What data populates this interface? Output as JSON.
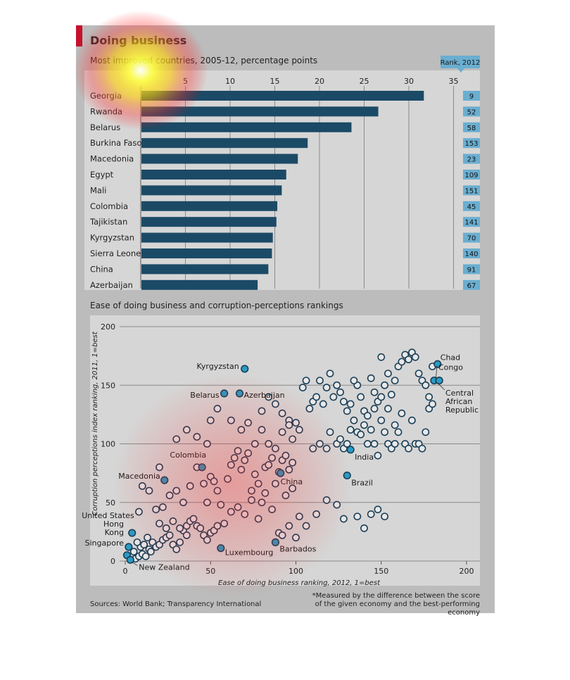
{
  "header": {
    "title": "Doing business",
    "subtitle": "Most improved countries, 2005-12, percentage points",
    "rank_header": "Rank, 2012"
  },
  "scatter_title": "Ease of doing business and corruption-perceptions rankings",
  "footer": {
    "sources": "Sources: World Bank; Transparency International",
    "footnote": "*Measured by the difference between the score of the given economy and the best-performing economy"
  },
  "colors": {
    "bar": "#1b4a66",
    "rank_box": "#6aaed0",
    "point_highlight": "#2a9bc4",
    "point_outline": "#1a3f57",
    "accent": "#c8102e"
  },
  "chart_data": [
    {
      "type": "bar",
      "orientation": "horizontal",
      "title": "Most improved countries, 2005-12, percentage points",
      "categories": [
        "Georgia",
        "Rwanda",
        "Belarus",
        "Burkina Faso",
        "Macedonia",
        "Egypt",
        "Mali",
        "Colombia",
        "Tajikistan",
        "Kyrgyzstan",
        "Sierra Leone",
        "China",
        "Azerbaijan"
      ],
      "values": [
        31.6,
        26.5,
        23.5,
        18.6,
        17.5,
        16.2,
        15.7,
        15.2,
        15.1,
        14.7,
        14.6,
        14.2,
        13.0
      ],
      "ranks": [
        9,
        52,
        58,
        153,
        23,
        109,
        151,
        45,
        141,
        70,
        140,
        91,
        67
      ],
      "rank_label": "Rank, 2012",
      "xlim": [
        0,
        35
      ],
      "xticks": [
        5,
        10,
        15,
        20,
        25,
        30,
        35
      ],
      "grid": true
    },
    {
      "type": "scatter",
      "title": "Ease of doing business and corruption-perceptions rankings",
      "xlabel": "Ease of doing business ranking, 2012, 1=best",
      "ylabel": "Corruption perceptions index ranking, 2011, 1=best",
      "xlim": [
        0,
        200
      ],
      "ylim": [
        0,
        200
      ],
      "xticks": [
        0,
        50,
        100,
        150,
        200
      ],
      "yticks": [
        0,
        50,
        100,
        150,
        200
      ],
      "grid": true,
      "highlighted": [
        {
          "label": "Kyrgyzstan",
          "x": 70,
          "y": 164
        },
        {
          "label": "Belarus",
          "x": 58,
          "y": 143
        },
        {
          "label": "Azerbaijan",
          "x": 67,
          "y": 143
        },
        {
          "label": "Chad",
          "x": 183,
          "y": 168
        },
        {
          "label": "Congo",
          "x": 181,
          "y": 154
        },
        {
          "label": "Central African Republic",
          "x": 184,
          "y": 154
        },
        {
          "label": "Colombia",
          "x": 45,
          "y": 80
        },
        {
          "label": "Macedonia",
          "x": 23,
          "y": 69
        },
        {
          "label": "China",
          "x": 91,
          "y": 75
        },
        {
          "label": "India",
          "x": 132,
          "y": 95
        },
        {
          "label": "Brazil",
          "x": 130,
          "y": 73
        },
        {
          "label": "United States",
          "x": 4,
          "y": 24
        },
        {
          "label": "Hong Kong",
          "x": 2,
          "y": 12
        },
        {
          "label": "Singapore",
          "x": 1,
          "y": 5
        },
        {
          "label": "New Zealand",
          "x": 3,
          "y": 1
        },
        {
          "label": "Luxembourg",
          "x": 56,
          "y": 11
        },
        {
          "label": "Barbados",
          "x": 88,
          "y": 16
        }
      ],
      "points": [
        [
          6,
          2
        ],
        [
          8,
          4
        ],
        [
          10,
          6
        ],
        [
          12,
          4
        ],
        [
          5,
          8
        ],
        [
          14,
          10
        ],
        [
          9,
          12
        ],
        [
          11,
          14
        ],
        [
          16,
          16
        ],
        [
          18,
          12
        ],
        [
          20,
          14
        ],
        [
          22,
          18
        ],
        [
          24,
          20
        ],
        [
          7,
          16
        ],
        [
          13,
          20
        ],
        [
          15,
          8
        ],
        [
          26,
          22
        ],
        [
          28,
          14
        ],
        [
          30,
          10
        ],
        [
          32,
          16
        ],
        [
          34,
          26
        ],
        [
          36,
          30
        ],
        [
          38,
          34
        ],
        [
          40,
          36
        ],
        [
          42,
          30
        ],
        [
          44,
          28
        ],
        [
          46,
          22
        ],
        [
          48,
          18
        ],
        [
          50,
          24
        ],
        [
          52,
          26
        ],
        [
          54,
          30
        ],
        [
          20,
          32
        ],
        [
          24,
          28
        ],
        [
          28,
          34
        ],
        [
          32,
          28
        ],
        [
          36,
          22
        ],
        [
          18,
          44
        ],
        [
          22,
          46
        ],
        [
          26,
          56
        ],
        [
          30,
          60
        ],
        [
          34,
          50
        ],
        [
          14,
          60
        ],
        [
          10,
          64
        ],
        [
          8,
          42
        ],
        [
          20,
          80
        ],
        [
          38,
          64
        ],
        [
          42,
          80
        ],
        [
          46,
          66
        ],
        [
          48,
          50
        ],
        [
          50,
          72
        ],
        [
          52,
          68
        ],
        [
          54,
          60
        ],
        [
          56,
          48
        ],
        [
          60,
          70
        ],
        [
          62,
          82
        ],
        [
          64,
          88
        ],
        [
          66,
          94
        ],
        [
          68,
          78
        ],
        [
          70,
          86
        ],
        [
          72,
          92
        ],
        [
          74,
          60
        ],
        [
          76,
          74
        ],
        [
          78,
          66
        ],
        [
          80,
          50
        ],
        [
          82,
          80
        ],
        [
          84,
          82
        ],
        [
          86,
          88
        ],
        [
          88,
          66
        ],
        [
          90,
          76
        ],
        [
          92,
          86
        ],
        [
          94,
          90
        ],
        [
          96,
          78
        ],
        [
          98,
          84
        ],
        [
          58,
          32
        ],
        [
          62,
          42
        ],
        [
          66,
          46
        ],
        [
          70,
          40
        ],
        [
          74,
          52
        ],
        [
          78,
          36
        ],
        [
          82,
          58
        ],
        [
          86,
          44
        ],
        [
          90,
          24
        ],
        [
          94,
          56
        ],
        [
          98,
          62
        ],
        [
          48,
          100
        ],
        [
          50,
          120
        ],
        [
          54,
          130
        ],
        [
          68,
          112
        ],
        [
          76,
          100
        ],
        [
          80,
          112
        ],
        [
          84,
          100
        ],
        [
          88,
          96
        ],
        [
          92,
          110
        ],
        [
          96,
          120
        ],
        [
          98,
          104
        ],
        [
          102,
          112
        ],
        [
          110,
          96
        ],
        [
          114,
          100
        ],
        [
          118,
          96
        ],
        [
          120,
          110
        ],
        [
          124,
          100
        ],
        [
          126,
          104
        ],
        [
          128,
          96
        ],
        [
          130,
          100
        ],
        [
          132,
          112
        ],
        [
          134,
          120
        ],
        [
          136,
          110
        ],
        [
          138,
          108
        ],
        [
          140,
          116
        ],
        [
          142,
          100
        ],
        [
          144,
          112
        ],
        [
          146,
          100
        ],
        [
          148,
          90
        ],
        [
          150,
          120
        ],
        [
          152,
          110
        ],
        [
          154,
          100
        ],
        [
          156,
          96
        ],
        [
          158,
          100
        ],
        [
          160,
          110
        ],
        [
          164,
          100
        ],
        [
          166,
          96
        ],
        [
          170,
          100
        ],
        [
          172,
          100
        ],
        [
          174,
          96
        ],
        [
          176,
          110
        ],
        [
          178,
          130
        ],
        [
          180,
          134
        ],
        [
          168,
          120
        ],
        [
          162,
          126
        ],
        [
          100,
          118
        ],
        [
          104,
          148
        ],
        [
          106,
          154
        ],
        [
          108,
          130
        ],
        [
          110,
          136
        ],
        [
          112,
          140
        ],
        [
          114,
          154
        ],
        [
          116,
          134
        ],
        [
          118,
          148
        ],
        [
          120,
          160
        ],
        [
          122,
          140
        ],
        [
          124,
          150
        ],
        [
          126,
          144
        ],
        [
          128,
          136
        ],
        [
          130,
          128
        ],
        [
          132,
          134
        ],
        [
          136,
          150
        ],
        [
          140,
          128
        ],
        [
          142,
          124
        ],
        [
          144,
          156
        ],
        [
          146,
          144
        ],
        [
          148,
          136
        ],
        [
          150,
          174
        ],
        [
          152,
          150
        ],
        [
          154,
          160
        ],
        [
          156,
          142
        ],
        [
          158,
          154
        ],
        [
          160,
          166
        ],
        [
          162,
          170
        ],
        [
          164,
          176
        ],
        [
          166,
          172
        ],
        [
          168,
          178
        ],
        [
          170,
          174
        ],
        [
          172,
          160
        ],
        [
          174,
          154
        ],
        [
          176,
          150
        ],
        [
          178,
          140
        ],
        [
          180,
          166
        ],
        [
          150,
          140
        ],
        [
          154,
          130
        ],
        [
          158,
          116
        ],
        [
          146,
          130
        ],
        [
          138,
          140
        ],
        [
          134,
          154
        ],
        [
          62,
          120
        ],
        [
          72,
          118
        ],
        [
          80,
          128
        ],
        [
          84,
          140
        ],
        [
          88,
          134
        ],
        [
          92,
          126
        ],
        [
          96,
          116
        ],
        [
          42,
          106
        ],
        [
          36,
          112
        ],
        [
          30,
          104
        ],
        [
          102,
          38
        ],
        [
          112,
          40
        ],
        [
          118,
          52
        ],
        [
          124,
          48
        ],
        [
          128,
          36
        ],
        [
          144,
          40
        ],
        [
          148,
          44
        ],
        [
          106,
          30
        ],
        [
          96,
          30
        ],
        [
          100,
          20
        ],
        [
          92,
          22
        ],
        [
          136,
          38
        ],
        [
          140,
          28
        ],
        [
          152,
          38
        ]
      ]
    }
  ]
}
